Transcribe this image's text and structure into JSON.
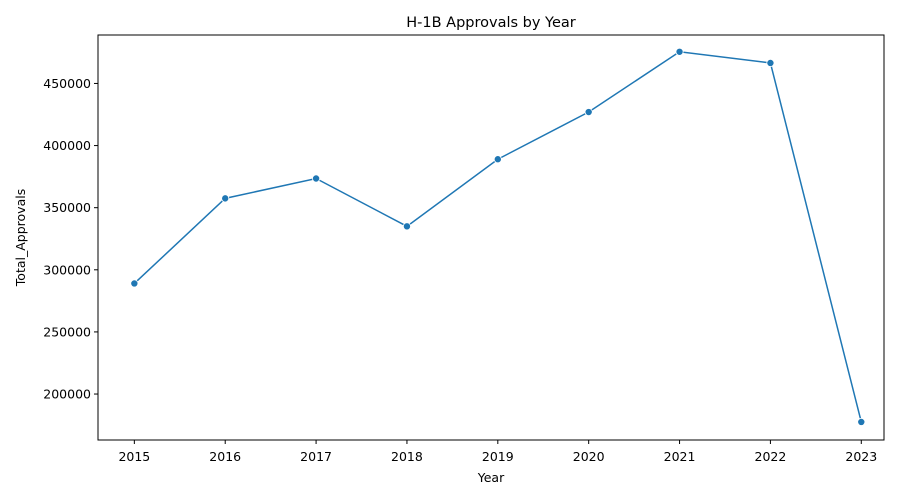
{
  "chart_data": {
    "type": "line",
    "title": "H-1B Approvals by Year",
    "xlabel": "Year",
    "ylabel": "Total_Approvals",
    "x": [
      2015,
      2016,
      2017,
      2018,
      2019,
      2020,
      2021,
      2022,
      2023
    ],
    "series": [
      {
        "values": [
          289000,
          357500,
          373500,
          335000,
          389000,
          427000,
          475500,
          466500,
          177500
        ]
      }
    ],
    "xlim": [
      2014.6,
      2023.25
    ],
    "ylim": [
      163000,
      489000
    ],
    "x_ticks": [
      "2015",
      "2016",
      "2017",
      "2018",
      "2019",
      "2020",
      "2021",
      "2022",
      "2023"
    ],
    "y_ticks": [
      200000,
      250000,
      300000,
      350000,
      400000,
      450000
    ],
    "y_tick_labels": [
      "200000",
      "250000",
      "300000",
      "350000",
      "400000",
      "450000"
    ],
    "grid": false,
    "legend": "none",
    "line_color": "#1f77b4",
    "marker": "circle"
  }
}
